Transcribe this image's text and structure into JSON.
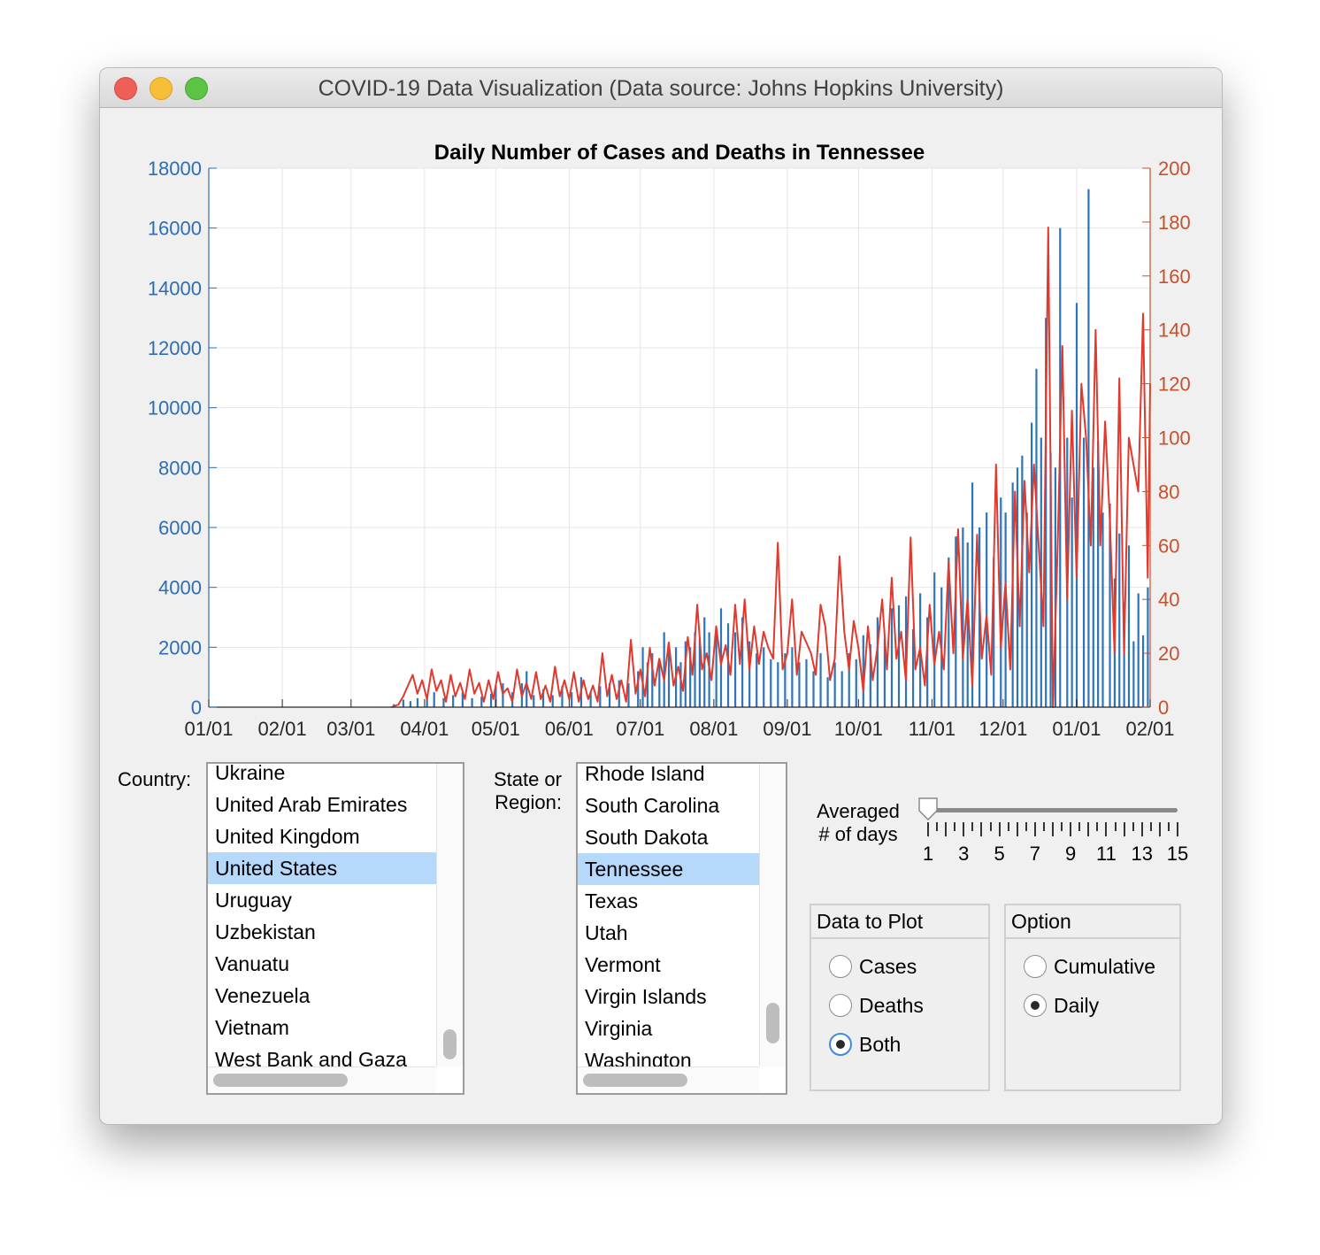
{
  "window": {
    "title": "COVID-19 Data Visualization (Data source: Johns Hopkins University)"
  },
  "colors": {
    "cases": "#2e74b8",
    "deaths": "#e03a2e",
    "cases_axis": "#2c6db5",
    "deaths_axis": "#c8502a",
    "selection": "#b6d8fb"
  },
  "chart_data": {
    "type": "bar",
    "title": "Daily Number of Cases and Deaths in Tennessee",
    "x_tick_labels": [
      "01/01",
      "02/01",
      "03/01",
      "04/01",
      "05/01",
      "06/01",
      "07/01",
      "08/01",
      "09/01",
      "10/01",
      "11/01",
      "12/01",
      "01/01",
      "02/01"
    ],
    "x_range_days": [
      0,
      397
    ],
    "y_left": {
      "ticks": [
        "0",
        "2000",
        "4000",
        "6000",
        "8000",
        "10000",
        "12000",
        "14000",
        "16000",
        "18000"
      ],
      "lim": [
        0,
        18000
      ]
    },
    "y_right": {
      "ticks": [
        "0",
        "20",
        "40",
        "60",
        "80",
        "100",
        "120",
        "140",
        "160",
        "180",
        "200"
      ],
      "lim": [
        0,
        200
      ]
    },
    "grid": true,
    "series": [
      {
        "type": "bar",
        "axis": "left",
        "points": [
          [
            78,
            100
          ],
          [
            82,
            250
          ],
          [
            85,
            200
          ],
          [
            88,
            300
          ],
          [
            92,
            350
          ],
          [
            95,
            500
          ],
          [
            99,
            300
          ],
          [
            103,
            400
          ],
          [
            107,
            500
          ],
          [
            111,
            300
          ],
          [
            115,
            350
          ],
          [
            119,
            450
          ],
          [
            121,
            700
          ],
          [
            124,
            800
          ],
          [
            128,
            500
          ],
          [
            132,
            800
          ],
          [
            134,
            1200
          ],
          [
            137,
            400
          ],
          [
            141,
            600
          ],
          [
            145,
            400
          ],
          [
            149,
            700
          ],
          [
            153,
            500
          ],
          [
            157,
            1000
          ],
          [
            161,
            500
          ],
          [
            165,
            700
          ],
          [
            169,
            800
          ],
          [
            173,
            900
          ],
          [
            177,
            800
          ],
          [
            181,
            1200
          ],
          [
            183,
            2000
          ],
          [
            185,
            1500
          ],
          [
            187,
            1800
          ],
          [
            190,
            1500
          ],
          [
            192,
            2500
          ],
          [
            194,
            2000
          ],
          [
            197,
            2000
          ],
          [
            199,
            1500
          ],
          [
            201,
            2200
          ],
          [
            203,
            2000
          ],
          [
            205,
            2500
          ],
          [
            207,
            2300
          ],
          [
            209,
            3000
          ],
          [
            211,
            2500
          ],
          [
            214,
            2500
          ],
          [
            216,
            3300
          ],
          [
            219,
            2800
          ],
          [
            222,
            2500
          ],
          [
            225,
            3000
          ],
          [
            228,
            2200
          ],
          [
            231,
            1800
          ],
          [
            234,
            2000
          ],
          [
            237,
            1600
          ],
          [
            240,
            1500
          ],
          [
            243,
            1800
          ],
          [
            246,
            2000
          ],
          [
            249,
            1500
          ],
          [
            252,
            1600
          ],
          [
            255,
            1200
          ],
          [
            258,
            1800
          ],
          [
            261,
            1000
          ],
          [
            264,
            1500
          ],
          [
            267,
            1200
          ],
          [
            270,
            1800
          ],
          [
            273,
            1600
          ],
          [
            276,
            2400
          ],
          [
            279,
            2100
          ],
          [
            282,
            3000
          ],
          [
            285,
            2300
          ],
          [
            288,
            3300
          ],
          [
            291,
            3400
          ],
          [
            294,
            3700
          ],
          [
            297,
            2600
          ],
          [
            300,
            3800
          ],
          [
            303,
            3000
          ],
          [
            306,
            4500
          ],
          [
            309,
            4000
          ],
          [
            312,
            5000
          ],
          [
            315,
            5700
          ],
          [
            318,
            6000
          ],
          [
            320,
            5500
          ],
          [
            322,
            7500
          ],
          [
            325,
            6000
          ],
          [
            328,
            6500
          ],
          [
            331,
            5000
          ],
          [
            334,
            7000
          ],
          [
            336,
            6500
          ],
          [
            339,
            7500
          ],
          [
            341,
            8000
          ],
          [
            343,
            8400
          ],
          [
            345,
            6500
          ],
          [
            347,
            9500
          ],
          [
            349,
            11300
          ],
          [
            351,
            9000
          ],
          [
            353,
            13000
          ],
          [
            355,
            8500
          ],
          [
            357,
            8000
          ],
          [
            359,
            16000
          ],
          [
            362,
            9000
          ],
          [
            364,
            7000
          ],
          [
            366,
            13500
          ],
          [
            369,
            9000
          ],
          [
            371,
            17300
          ],
          [
            373,
            8000
          ],
          [
            375,
            8900
          ],
          [
            377,
            6500
          ],
          [
            380,
            6800
          ],
          [
            382,
            4300
          ],
          [
            384,
            5800
          ],
          [
            386,
            3500
          ],
          [
            388,
            5400
          ],
          [
            390,
            2200
          ],
          [
            392,
            3800
          ],
          [
            394,
            2400
          ],
          [
            396,
            4000
          ]
        ]
      },
      {
        "type": "line",
        "axis": "right",
        "points": [
          [
            77,
            0
          ],
          [
            80,
            1
          ],
          [
            82,
            4
          ],
          [
            84,
            8
          ],
          [
            86,
            12
          ],
          [
            88,
            5
          ],
          [
            90,
            10
          ],
          [
            92,
            3
          ],
          [
            94,
            14
          ],
          [
            96,
            6
          ],
          [
            98,
            10
          ],
          [
            100,
            2
          ],
          [
            102,
            12
          ],
          [
            104,
            4
          ],
          [
            106,
            9
          ],
          [
            108,
            3
          ],
          [
            110,
            14
          ],
          [
            112,
            5
          ],
          [
            114,
            9
          ],
          [
            116,
            2
          ],
          [
            118,
            10
          ],
          [
            120,
            3
          ],
          [
            122,
            13
          ],
          [
            124,
            5
          ],
          [
            126,
            7
          ],
          [
            128,
            2
          ],
          [
            130,
            14
          ],
          [
            132,
            4
          ],
          [
            134,
            9
          ],
          [
            136,
            3
          ],
          [
            138,
            13
          ],
          [
            140,
            3
          ],
          [
            142,
            8
          ],
          [
            144,
            2
          ],
          [
            146,
            15
          ],
          [
            148,
            4
          ],
          [
            150,
            10
          ],
          [
            152,
            3
          ],
          [
            154,
            13
          ],
          [
            156,
            2
          ],
          [
            158,
            10
          ],
          [
            160,
            3
          ],
          [
            162,
            8
          ],
          [
            164,
            2
          ],
          [
            166,
            20
          ],
          [
            168,
            4
          ],
          [
            170,
            12
          ],
          [
            172,
            3
          ],
          [
            174,
            10
          ],
          [
            176,
            2
          ],
          [
            178,
            25
          ],
          [
            180,
            5
          ],
          [
            182,
            14
          ],
          [
            184,
            4
          ],
          [
            186,
            22
          ],
          [
            188,
            8
          ],
          [
            190,
            18
          ],
          [
            192,
            10
          ],
          [
            194,
            24
          ],
          [
            196,
            8
          ],
          [
            198,
            15
          ],
          [
            200,
            6
          ],
          [
            202,
            26
          ],
          [
            204,
            12
          ],
          [
            206,
            38
          ],
          [
            208,
            14
          ],
          [
            210,
            20
          ],
          [
            212,
            10
          ],
          [
            214,
            30
          ],
          [
            216,
            16
          ],
          [
            218,
            23
          ],
          [
            220,
            12
          ],
          [
            222,
            38
          ],
          [
            224,
            16
          ],
          [
            226,
            40
          ],
          [
            228,
            14
          ],
          [
            230,
            30
          ],
          [
            232,
            16
          ],
          [
            234,
            28
          ],
          [
            236,
            22
          ],
          [
            238,
            18
          ],
          [
            240,
            61
          ],
          [
            242,
            14
          ],
          [
            244,
            20
          ],
          [
            246,
            40
          ],
          [
            248,
            12
          ],
          [
            250,
            28
          ],
          [
            252,
            24
          ],
          [
            254,
            20
          ],
          [
            256,
            12
          ],
          [
            258,
            38
          ],
          [
            260,
            30
          ],
          [
            262,
            10
          ],
          [
            264,
            18
          ],
          [
            266,
            56
          ],
          [
            268,
            28
          ],
          [
            270,
            14
          ],
          [
            272,
            32
          ],
          [
            274,
            22
          ],
          [
            276,
            6
          ],
          [
            278,
            30
          ],
          [
            280,
            10
          ],
          [
            282,
            22
          ],
          [
            284,
            40
          ],
          [
            286,
            14
          ],
          [
            288,
            48
          ],
          [
            290,
            18
          ],
          [
            292,
            28
          ],
          [
            294,
            10
          ],
          [
            296,
            63
          ],
          [
            298,
            14
          ],
          [
            300,
            22
          ],
          [
            302,
            8
          ],
          [
            304,
            38
          ],
          [
            306,
            16
          ],
          [
            308,
            28
          ],
          [
            310,
            14
          ],
          [
            312,
            54
          ],
          [
            314,
            20
          ],
          [
            316,
            66
          ],
          [
            318,
            18
          ],
          [
            320,
            40
          ],
          [
            322,
            8
          ],
          [
            324,
            64
          ],
          [
            326,
            18
          ],
          [
            328,
            34
          ],
          [
            330,
            12
          ],
          [
            332,
            90
          ],
          [
            334,
            22
          ],
          [
            336,
            46
          ],
          [
            338,
            14
          ],
          [
            340,
            80
          ],
          [
            342,
            30
          ],
          [
            344,
            84
          ],
          [
            346,
            50
          ],
          [
            348,
            90
          ],
          [
            350,
            60
          ],
          [
            352,
            30
          ],
          [
            354,
            178
          ],
          [
            356,
            0
          ],
          [
            358,
            60
          ],
          [
            360,
            134
          ],
          [
            362,
            40
          ],
          [
            364,
            110
          ],
          [
            366,
            48
          ],
          [
            368,
            120
          ],
          [
            370,
            100
          ],
          [
            372,
            60
          ],
          [
            374,
            140
          ],
          [
            376,
            60
          ],
          [
            378,
            106
          ],
          [
            380,
            70
          ],
          [
            382,
            20
          ],
          [
            384,
            122
          ],
          [
            386,
            20
          ],
          [
            388,
            100
          ],
          [
            390,
            90
          ],
          [
            392,
            80
          ],
          [
            394,
            146
          ],
          [
            396,
            48
          ],
          [
            397,
            120
          ]
        ]
      }
    ]
  },
  "controls": {
    "country_label": "Country:",
    "country_items": [
      "Ukraine",
      "United Arab Emirates",
      "United Kingdom",
      "United States",
      "Uruguay",
      "Uzbekistan",
      "Vanuatu",
      "Venezuela",
      "Vietnam",
      "West Bank and Gaza"
    ],
    "country_selected": "United States",
    "state_label_line1": "State or",
    "state_label_line2": "Region:",
    "state_items": [
      "Rhode Island",
      "South Carolina",
      "South Dakota",
      "Tennessee",
      "Texas",
      "Utah",
      "Vermont",
      "Virgin Islands",
      "Virginia",
      "Washington"
    ],
    "state_selected": "Tennessee",
    "avg_label_line1": "Averaged",
    "avg_label_line2": "# of days",
    "avg_value": 1,
    "avg_tick_labels": [
      "1",
      "3",
      "5",
      "7",
      "9",
      "11",
      "13",
      "15"
    ],
    "data_to_plot": {
      "title": "Data to Plot",
      "options": [
        "Cases",
        "Deaths",
        "Both"
      ],
      "selected": "Both"
    },
    "option": {
      "title": "Option",
      "options": [
        "Cumulative",
        "Daily"
      ],
      "selected": "Daily"
    }
  }
}
